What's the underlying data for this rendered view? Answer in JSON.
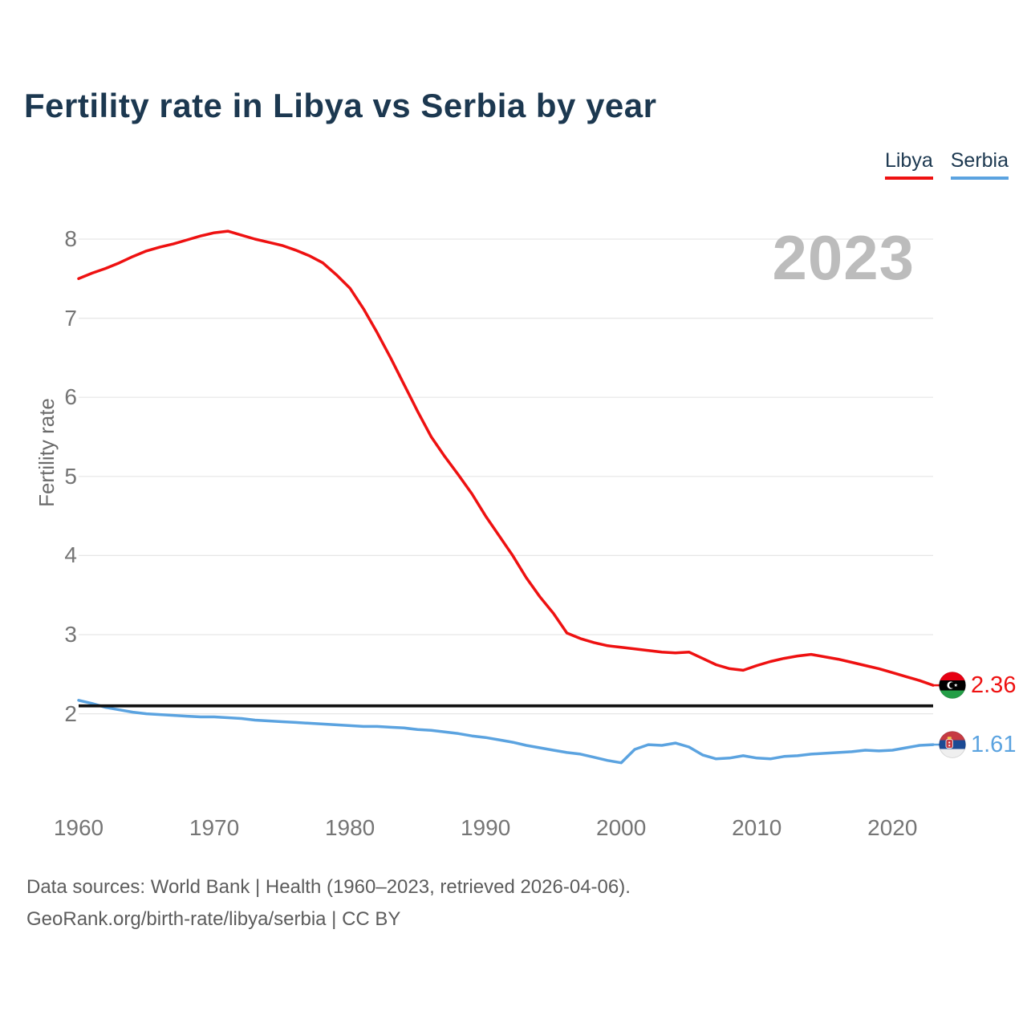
{
  "header": {
    "title": "Fertility rate in Libya vs Serbia by year"
  },
  "legend": {
    "libya_label": "Libya",
    "serbia_label": "Serbia"
  },
  "watermark": "2023",
  "colors": {
    "libya_red": "#ee1111",
    "serbia_blue": "#5ba3e0",
    "reference_black": "#111111",
    "gridline": "#e6e6e6",
    "tick_text": "#757575",
    "title_navy": "#1c3850",
    "watermark_gray": "#bcbcbc"
  },
  "footer": {
    "line1": "Data sources: World Bank | Health (1960–2023, retrieved 2026-04-06).",
    "line2": "GeoRank.org/birth-rate/libya/serbia | CC BY"
  },
  "chart_data": {
    "type": "line",
    "title": "Fertility rate in Libya vs Serbia by year",
    "xlabel": "",
    "ylabel": "Fertility rate",
    "grid": "horizontal",
    "legend_position": "top-right",
    "xlim": [
      1960,
      2023
    ],
    "ylim": [
      1.0,
      8.5
    ],
    "x_ticks": [
      1960,
      1970,
      1980,
      1990,
      2000,
      2010,
      2020
    ],
    "y_ticks": [
      2,
      3,
      4,
      5,
      6,
      7,
      8
    ],
    "reference_line": {
      "value": 2.1,
      "color": "#111111"
    },
    "x": [
      1960,
      1961,
      1962,
      1963,
      1964,
      1965,
      1966,
      1967,
      1968,
      1969,
      1970,
      1971,
      1972,
      1973,
      1974,
      1975,
      1976,
      1977,
      1978,
      1979,
      1980,
      1981,
      1982,
      1983,
      1984,
      1985,
      1986,
      1987,
      1988,
      1989,
      1990,
      1991,
      1992,
      1993,
      1994,
      1995,
      1996,
      1997,
      1998,
      1999,
      2000,
      2001,
      2002,
      2003,
      2004,
      2005,
      2006,
      2007,
      2008,
      2009,
      2010,
      2011,
      2012,
      2013,
      2014,
      2015,
      2016,
      2017,
      2018,
      2019,
      2020,
      2021,
      2022,
      2023
    ],
    "series": [
      {
        "name": "Libya",
        "color": "#ee1111",
        "end_label": "2.36",
        "end_value": 2.36,
        "values": [
          7.5,
          7.57,
          7.63,
          7.7,
          7.78,
          7.85,
          7.9,
          7.94,
          7.99,
          8.04,
          8.08,
          8.1,
          8.05,
          8.0,
          7.96,
          7.92,
          7.86,
          7.79,
          7.7,
          7.55,
          7.38,
          7.12,
          6.82,
          6.5,
          6.16,
          5.82,
          5.5,
          5.25,
          5.02,
          4.78,
          4.5,
          4.25,
          4.0,
          3.72,
          3.48,
          3.27,
          3.02,
          2.95,
          2.9,
          2.86,
          2.84,
          2.82,
          2.8,
          2.78,
          2.77,
          2.78,
          2.7,
          2.62,
          2.57,
          2.55,
          2.61,
          2.66,
          2.7,
          2.73,
          2.75,
          2.72,
          2.69,
          2.65,
          2.61,
          2.57,
          2.52,
          2.47,
          2.42,
          2.36
        ]
      },
      {
        "name": "Serbia",
        "color": "#5ba3e0",
        "end_label": "1.61",
        "end_value": 1.61,
        "values": [
          2.17,
          2.13,
          2.08,
          2.05,
          2.02,
          2.0,
          1.99,
          1.98,
          1.97,
          1.96,
          1.96,
          1.95,
          1.94,
          1.92,
          1.91,
          1.9,
          1.89,
          1.88,
          1.87,
          1.86,
          1.85,
          1.84,
          1.84,
          1.83,
          1.82,
          1.8,
          1.79,
          1.77,
          1.75,
          1.72,
          1.7,
          1.67,
          1.64,
          1.6,
          1.57,
          1.54,
          1.51,
          1.49,
          1.45,
          1.41,
          1.38,
          1.55,
          1.61,
          1.6,
          1.63,
          1.58,
          1.48,
          1.43,
          1.44,
          1.47,
          1.44,
          1.43,
          1.46,
          1.47,
          1.49,
          1.5,
          1.51,
          1.52,
          1.54,
          1.53,
          1.54,
          1.57,
          1.6,
          1.61
        ]
      }
    ]
  }
}
